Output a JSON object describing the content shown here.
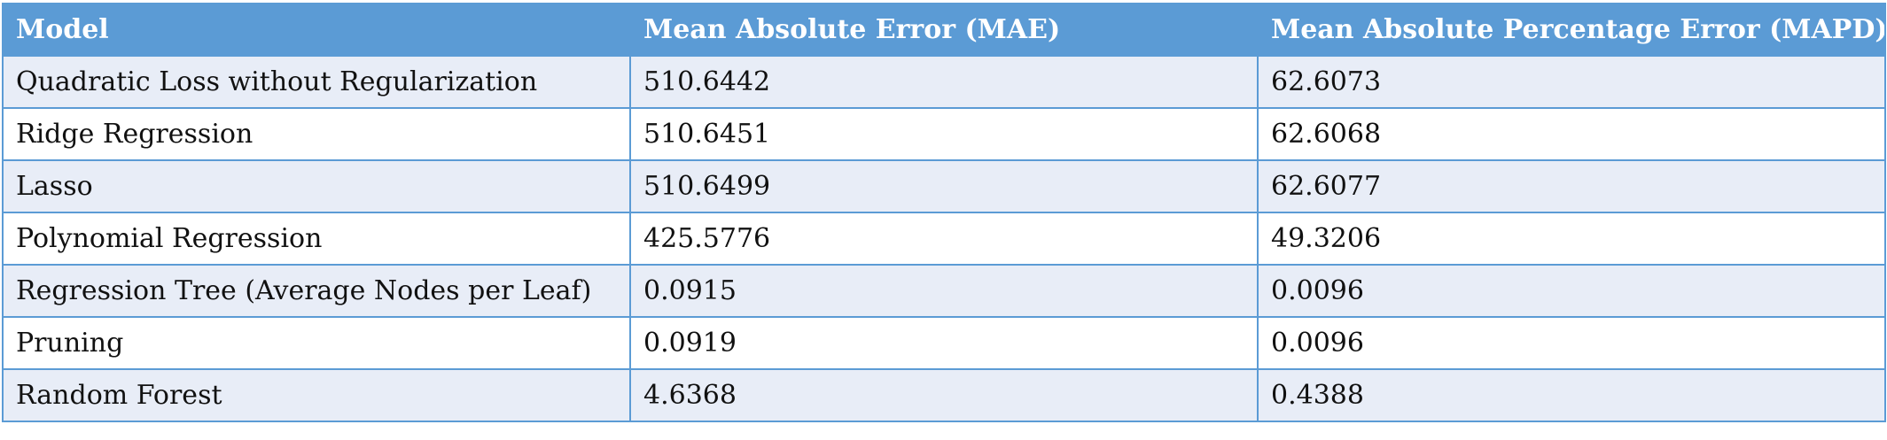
{
  "table": {
    "headers": [
      "Model",
      "Mean Absolute Error (MAE)",
      "Mean Absolute Percentage Error (MAPD)"
    ],
    "rows": [
      [
        "Quadratic Loss without Regularization",
        "510.6442",
        "62.6073"
      ],
      [
        "Ridge Regression",
        "510.6451",
        "62.6068"
      ],
      [
        "Lasso",
        "510.6499",
        "62.6077"
      ],
      [
        "Polynomial Regression",
        "425.5776",
        "49.3206"
      ],
      [
        "Regression Tree (Average Nodes per Leaf)",
        "0.0915",
        "0.0096"
      ],
      [
        "Pruning",
        "0.0919",
        "0.0096"
      ],
      [
        "Random Forest",
        "4.6368",
        "0.4388"
      ]
    ]
  },
  "colors": {
    "header_bg": "#5b9bd5",
    "header_text": "#ffffff",
    "row_stripe": "#e8edf7",
    "row_plain": "#ffffff",
    "border": "#5b9bd5"
  }
}
